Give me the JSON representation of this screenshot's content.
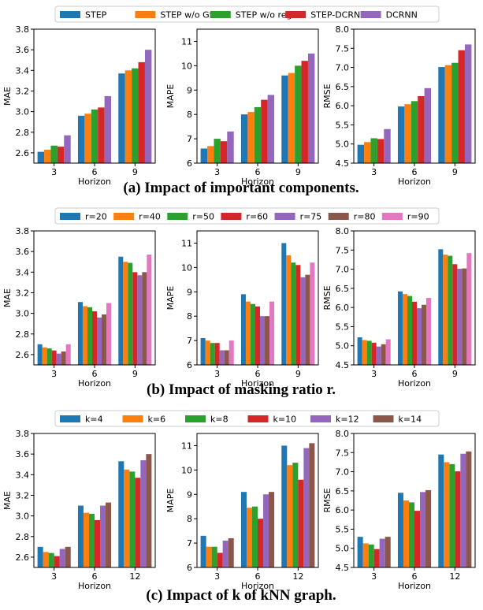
{
  "colors": {
    "blue": "#1f77b4",
    "orange": "#ff7f0e",
    "green": "#2ca02c",
    "red": "#d62728",
    "purple": "#9467bd",
    "brown": "#8c564b",
    "pink": "#e377c2"
  },
  "chart_data": [
    {
      "type": "bar",
      "caption": "(a) Impact of important components.",
      "legend": [
        "STEP",
        "STEP w/o GSL",
        "STEP w/o reg",
        "STEP-DCRNN",
        "DCRNN"
      ],
      "legend_placement": "top",
      "series_colors": [
        "#1f77b4",
        "#ff7f0e",
        "#2ca02c",
        "#d62728",
        "#9467bd"
      ],
      "panels": [
        {
          "ylabel": "MAE",
          "xlabel": "Horizon",
          "categories": [
            "3",
            "6",
            "9"
          ],
          "ylim": [
            2.5,
            3.8
          ],
          "yticks": [
            2.6,
            2.8,
            3.0,
            3.2,
            3.4,
            3.6,
            3.8
          ],
          "tick_decimals": 1,
          "series": [
            {
              "name": "STEP",
              "values": [
                2.61,
                2.96,
                3.37
              ]
            },
            {
              "name": "STEP w/o GSL",
              "values": [
                2.63,
                2.98,
                3.4
              ]
            },
            {
              "name": "STEP w/o reg",
              "values": [
                2.67,
                3.02,
                3.42
              ]
            },
            {
              "name": "STEP-DCRNN",
              "values": [
                2.66,
                3.04,
                3.48
              ]
            },
            {
              "name": "DCRNN",
              "values": [
                2.77,
                3.15,
                3.6
              ]
            }
          ]
        },
        {
          "ylabel": "MAPE",
          "xlabel": "Horizon",
          "categories": [
            "3",
            "6",
            "9"
          ],
          "ylim": [
            6,
            11.5
          ],
          "yticks": [
            6,
            7,
            8,
            9,
            10,
            11
          ],
          "tick_decimals": 0,
          "series": [
            {
              "name": "STEP",
              "values": [
                6.6,
                8.0,
                9.6
              ]
            },
            {
              "name": "STEP w/o GSL",
              "values": [
                6.7,
                8.1,
                9.7
              ]
            },
            {
              "name": "STEP w/o reg",
              "values": [
                7.0,
                8.3,
                10.0
              ]
            },
            {
              "name": "STEP-DCRNN",
              "values": [
                6.9,
                8.6,
                10.2
              ]
            },
            {
              "name": "DCRNN",
              "values": [
                7.3,
                8.8,
                10.5
              ]
            }
          ]
        },
        {
          "ylabel": "RMSE",
          "xlabel": "Horizon",
          "categories": [
            "3",
            "6",
            "9"
          ],
          "ylim": [
            4.5,
            8.0
          ],
          "yticks": [
            4.5,
            5.0,
            5.5,
            6.0,
            6.5,
            7.0,
            7.5,
            8.0
          ],
          "tick_decimals": 1,
          "series": [
            {
              "name": "STEP",
              "values": [
                4.98,
                5.98,
                7.01
              ]
            },
            {
              "name": "STEP w/o GSL",
              "values": [
                5.05,
                6.04,
                7.06
              ]
            },
            {
              "name": "STEP w/o reg",
              "values": [
                5.15,
                6.12,
                7.12
              ]
            },
            {
              "name": "STEP-DCRNN",
              "values": [
                5.13,
                6.25,
                7.45
              ]
            },
            {
              "name": "DCRNN",
              "values": [
                5.39,
                6.46,
                7.6
              ]
            }
          ]
        }
      ]
    },
    {
      "type": "bar",
      "caption": "(b) Impact of masking ratio r.",
      "legend": [
        "r=20",
        "r=40",
        "r=50",
        "r=60",
        "r=75",
        "r=80",
        "r=90"
      ],
      "legend_placement": "top",
      "series_colors": [
        "#1f77b4",
        "#ff7f0e",
        "#2ca02c",
        "#d62728",
        "#9467bd",
        "#8c564b",
        "#e377c2"
      ],
      "panels": [
        {
          "ylabel": "MAE",
          "xlabel": "Horizon",
          "categories": [
            "3",
            "6",
            "9"
          ],
          "ylim": [
            2.5,
            3.8
          ],
          "yticks": [
            2.6,
            2.8,
            3.0,
            3.2,
            3.4,
            3.6,
            3.8
          ],
          "tick_decimals": 1,
          "series": [
            {
              "name": "r=20",
              "values": [
                2.7,
                3.11,
                3.55
              ]
            },
            {
              "name": "r=40",
              "values": [
                2.67,
                3.07,
                3.5
              ]
            },
            {
              "name": "r=50",
              "values": [
                2.66,
                3.06,
                3.49
              ]
            },
            {
              "name": "r=60",
              "values": [
                2.64,
                3.02,
                3.4
              ]
            },
            {
              "name": "r=75",
              "values": [
                2.61,
                2.96,
                3.37
              ]
            },
            {
              "name": "r=80",
              "values": [
                2.63,
                2.99,
                3.4
              ]
            },
            {
              "name": "r=90",
              "values": [
                2.7,
                3.1,
                3.57
              ]
            }
          ]
        },
        {
          "ylabel": "MAPE",
          "xlabel": "Horizon",
          "categories": [
            "3",
            "6",
            "9"
          ],
          "ylim": [
            6,
            11.5
          ],
          "yticks": [
            6,
            7,
            8,
            9,
            10,
            11
          ],
          "tick_decimals": 0,
          "series": [
            {
              "name": "r=20",
              "values": [
                7.1,
                8.9,
                11.0
              ]
            },
            {
              "name": "r=40",
              "values": [
                7.0,
                8.6,
                10.5
              ]
            },
            {
              "name": "r=50",
              "values": [
                6.9,
                8.5,
                10.2
              ]
            },
            {
              "name": "r=60",
              "values": [
                6.9,
                8.4,
                10.1
              ]
            },
            {
              "name": "r=75",
              "values": [
                6.6,
                8.0,
                9.6
              ]
            },
            {
              "name": "r=80",
              "values": [
                6.6,
                8.0,
                9.7
              ]
            },
            {
              "name": "r=90",
              "values": [
                7.0,
                8.6,
                10.2
              ]
            }
          ]
        },
        {
          "ylabel": "RMSE",
          "xlabel": "Horizon",
          "categories": [
            "3",
            "6",
            "9"
          ],
          "ylim": [
            4.5,
            8.0
          ],
          "yticks": [
            4.5,
            5.0,
            5.5,
            6.0,
            6.5,
            7.0,
            7.5,
            8.0
          ],
          "tick_decimals": 1,
          "series": [
            {
              "name": "r=20",
              "values": [
                5.22,
                6.42,
                7.52
              ]
            },
            {
              "name": "r=40",
              "values": [
                5.15,
                6.35,
                7.38
              ]
            },
            {
              "name": "r=50",
              "values": [
                5.13,
                6.3,
                7.35
              ]
            },
            {
              "name": "r=60",
              "values": [
                5.08,
                6.15,
                7.13
              ]
            },
            {
              "name": "r=75",
              "values": [
                4.98,
                5.98,
                7.01
              ]
            },
            {
              "name": "r=80",
              "values": [
                5.04,
                6.07,
                7.02
              ]
            },
            {
              "name": "r=90",
              "values": [
                5.17,
                6.25,
                7.42
              ]
            }
          ]
        }
      ]
    },
    {
      "type": "bar",
      "caption": "(c) Impact of k of kNN graph.",
      "legend": [
        "k=4",
        "k=6",
        "k=8",
        "k=10",
        "k=12",
        "k=14"
      ],
      "legend_placement": "top",
      "series_colors": [
        "#1f77b4",
        "#ff7f0e",
        "#2ca02c",
        "#d62728",
        "#9467bd",
        "#8c564b"
      ],
      "panels": [
        {
          "ylabel": "MAE",
          "xlabel": "Horizon",
          "categories": [
            "3",
            "6",
            "12"
          ],
          "ylim": [
            2.5,
            3.8
          ],
          "yticks": [
            2.6,
            2.8,
            3.0,
            3.2,
            3.4,
            3.6,
            3.8
          ],
          "tick_decimals": 1,
          "series": [
            {
              "name": "k=4",
              "values": [
                2.7,
                3.1,
                3.53
              ]
            },
            {
              "name": "k=6",
              "values": [
                2.65,
                3.03,
                3.45
              ]
            },
            {
              "name": "k=8",
              "values": [
                2.64,
                3.02,
                3.43
              ]
            },
            {
              "name": "k=10",
              "values": [
                2.61,
                2.96,
                3.37
              ]
            },
            {
              "name": "k=12",
              "values": [
                2.68,
                3.1,
                3.54
              ]
            },
            {
              "name": "k=14",
              "values": [
                2.7,
                3.13,
                3.6
              ]
            }
          ]
        },
        {
          "ylabel": "MAPE",
          "xlabel": "Horizon",
          "categories": [
            "3",
            "6",
            "12"
          ],
          "ylim": [
            6,
            11.5
          ],
          "yticks": [
            6,
            7,
            8,
            9,
            10,
            11
          ],
          "tick_decimals": 0,
          "series": [
            {
              "name": "k=4",
              "values": [
                7.3,
                9.1,
                11.0
              ]
            },
            {
              "name": "k=6",
              "values": [
                6.85,
                8.45,
                10.2
              ]
            },
            {
              "name": "k=8",
              "values": [
                6.85,
                8.5,
                10.3
              ]
            },
            {
              "name": "k=10",
              "values": [
                6.6,
                8.0,
                9.6
              ]
            },
            {
              "name": "k=12",
              "values": [
                7.1,
                9.0,
                10.9
              ]
            },
            {
              "name": "k=14",
              "values": [
                7.2,
                9.1,
                11.1
              ]
            }
          ]
        },
        {
          "ylabel": "RMSE",
          "xlabel": "Horizon",
          "categories": [
            "3",
            "6",
            "12"
          ],
          "ylim": [
            4.5,
            8.0
          ],
          "yticks": [
            4.5,
            5.0,
            5.5,
            6.0,
            6.5,
            7.0,
            7.5,
            8.0
          ],
          "tick_decimals": 1,
          "series": [
            {
              "name": "k=4",
              "values": [
                5.3,
                6.45,
                7.45
              ]
            },
            {
              "name": "k=6",
              "values": [
                5.13,
                6.25,
                7.25
              ]
            },
            {
              "name": "k=8",
              "values": [
                5.1,
                6.2,
                7.2
              ]
            },
            {
              "name": "k=10",
              "values": [
                4.98,
                5.98,
                7.01
              ]
            },
            {
              "name": "k=12",
              "values": [
                5.25,
                6.47,
                7.47
              ]
            },
            {
              "name": "k=14",
              "values": [
                5.3,
                6.52,
                7.53
              ]
            }
          ]
        }
      ]
    }
  ]
}
